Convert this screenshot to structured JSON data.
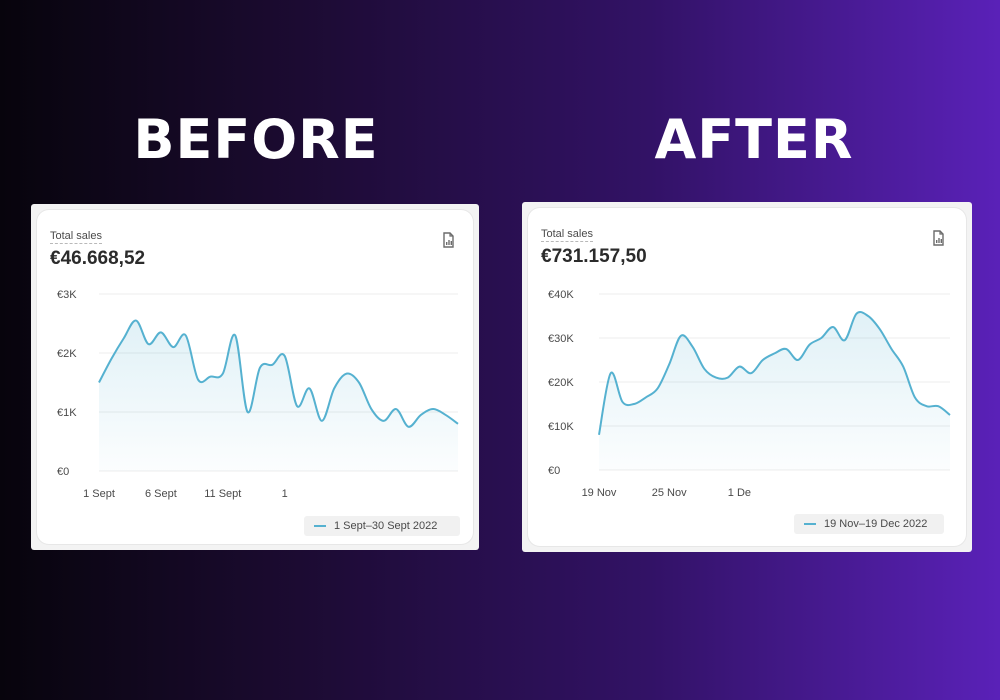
{
  "headings": {
    "before": "BEFORE",
    "after": "AFTER"
  },
  "colors": {
    "line": "#55b1d0",
    "grid": "#ececec",
    "axis_text": "#4a4a4a"
  },
  "panels": {
    "before": {
      "title": "Total sales",
      "value": "€46.668,52",
      "export_icon": "export-report-icon",
      "legend": "1 Sept–30 Sept 2022"
    },
    "after": {
      "title": "Total sales",
      "value": "€731.157,50",
      "export_icon": "export-report-icon",
      "legend": "19 Nov–19 Dec 2022"
    }
  },
  "chart_data": [
    {
      "type": "area",
      "title": "Total sales",
      "xlabel": "",
      "ylabel": "",
      "x_ticks": [
        {
          "x": 1,
          "label": "1 Sept"
        },
        {
          "x": 6,
          "label": "6 Sept"
        },
        {
          "x": 11,
          "label": "11 Sept"
        },
        {
          "x": 16,
          "label": "1"
        }
      ],
      "x_range": [
        1,
        30
      ],
      "y_ticks": [
        {
          "value": 0,
          "label": "€0"
        },
        {
          "value": 1000,
          "label": "€1K"
        },
        {
          "value": 2000,
          "label": "€2K"
        },
        {
          "value": 3000,
          "label": "€3K"
        }
      ],
      "ylim": [
        0,
        3000
      ],
      "grid": true,
      "legend_position": "bottom-right",
      "series": [
        {
          "name": "1 Sept–30 Sept 2022",
          "x": [
            1,
            2,
            3,
            4,
            5,
            6,
            7,
            8,
            9,
            10,
            11,
            12,
            13,
            14,
            15,
            16,
            17,
            18,
            19,
            20,
            21,
            22,
            23,
            24,
            25,
            26,
            27,
            28,
            29,
            30
          ],
          "y": [
            1500,
            1900,
            2250,
            2550,
            2150,
            2350,
            2100,
            2300,
            1550,
            1600,
            1650,
            2300,
            1000,
            1750,
            1800,
            1950,
            1100,
            1400,
            850,
            1400,
            1650,
            1500,
            1050,
            850,
            1050,
            750,
            950,
            1050,
            950,
            800
          ]
        }
      ]
    },
    {
      "type": "area",
      "title": "Total sales",
      "xlabel": "",
      "ylabel": "",
      "x_ticks": [
        {
          "x": 1,
          "label": "19 Nov"
        },
        {
          "x": 7,
          "label": "25 Nov"
        },
        {
          "x": 13,
          "label": "1 De"
        }
      ],
      "x_range": [
        1,
        31
      ],
      "y_ticks": [
        {
          "value": 0,
          "label": "€0"
        },
        {
          "value": 10000,
          "label": "€10K"
        },
        {
          "value": 20000,
          "label": "€20K"
        },
        {
          "value": 30000,
          "label": "€30K"
        },
        {
          "value": 40000,
          "label": "€40K"
        }
      ],
      "ylim": [
        0,
        40000
      ],
      "grid": true,
      "legend_position": "bottom-right",
      "series": [
        {
          "name": "19 Nov–19 Dec 2022",
          "x": [
            1,
            2,
            3,
            4,
            5,
            6,
            7,
            8,
            9,
            10,
            11,
            12,
            13,
            14,
            15,
            16,
            17,
            18,
            19,
            20,
            21,
            22,
            23,
            24,
            25,
            26,
            27,
            28,
            29,
            30,
            31
          ],
          "y": [
            8000,
            22000,
            15500,
            15000,
            16500,
            18500,
            24000,
            30500,
            28000,
            23000,
            21000,
            21000,
            23500,
            22000,
            25000,
            26500,
            27500,
            25000,
            28500,
            30000,
            32500,
            29500,
            35500,
            35000,
            32000,
            27500,
            23500,
            16500,
            14500,
            14500,
            12500
          ]
        }
      ]
    }
  ]
}
